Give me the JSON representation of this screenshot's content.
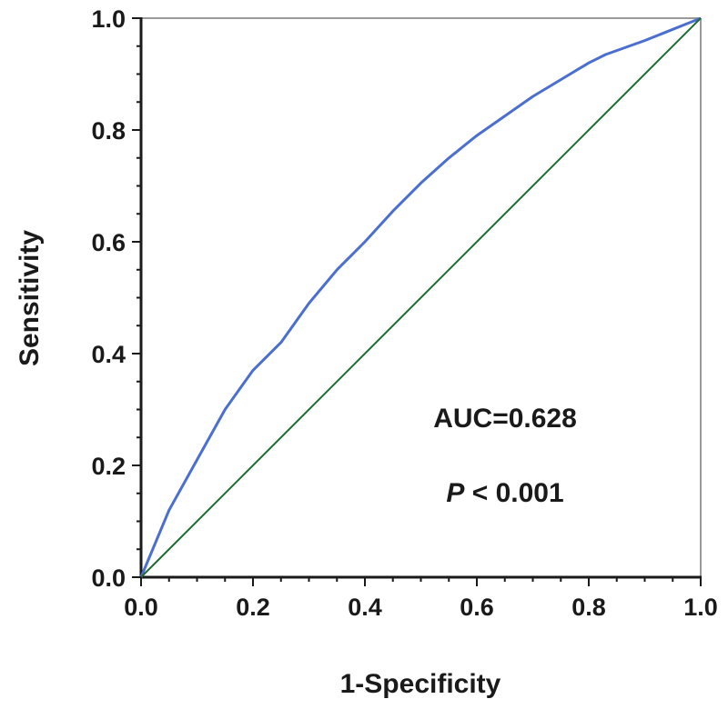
{
  "chart_data": {
    "type": "line",
    "xlabel": "1-Specificity",
    "ylabel": "Sensitivity",
    "xlim": [
      0,
      1
    ],
    "ylim": [
      0,
      1
    ],
    "x_ticks": [
      "0.0",
      "0.2",
      "0.4",
      "0.6",
      "0.8",
      "1.0"
    ],
    "y_ticks": [
      "0.0",
      "0.2",
      "0.4",
      "0.6",
      "0.8",
      "1.0"
    ],
    "x_tick_values": [
      0,
      0.2,
      0.4,
      0.6,
      0.8,
      1.0
    ],
    "y_tick_values": [
      0,
      0.2,
      0.4,
      0.6,
      0.8,
      1.0
    ],
    "grid": false,
    "series": [
      {
        "color": "#4a6fd0",
        "x": [
          0,
          0.05,
          0.1,
          0.15,
          0.2,
          0.25,
          0.3,
          0.35,
          0.4,
          0.45,
          0.5,
          0.55,
          0.6,
          0.65,
          0.7,
          0.75,
          0.8,
          0.83,
          0.9,
          0.95,
          1.0
        ],
        "y": [
          0,
          0.12,
          0.21,
          0.3,
          0.37,
          0.42,
          0.49,
          0.55,
          0.6,
          0.655,
          0.705,
          0.75,
          0.79,
          0.825,
          0.86,
          0.89,
          0.92,
          0.935,
          0.96,
          0.98,
          1.0
        ]
      },
      {
        "color": "#1e6b2f",
        "x": [
          0,
          1
        ],
        "y": [
          0,
          1
        ]
      }
    ],
    "annotations": [
      {
        "text": "AUC=0.628"
      },
      {
        "prefix": "P",
        "text": " < 0.001"
      }
    ]
  }
}
